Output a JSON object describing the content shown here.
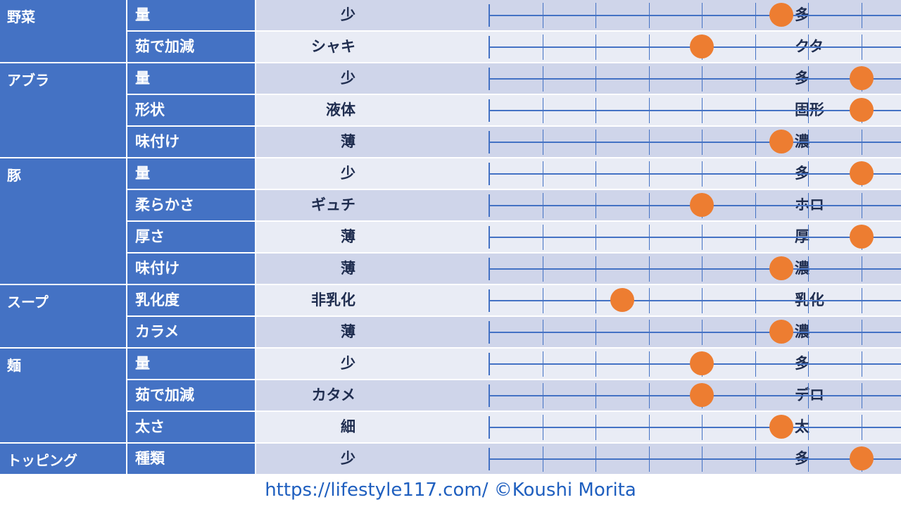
{
  "chart_data": {
    "type": "table",
    "scale_steps": 5,
    "groups": [
      {
        "name": "野菜",
        "rows": [
          {
            "item": "量",
            "left": "少",
            "right": "多",
            "value": 4
          },
          {
            "item": "茹で加減",
            "left": "シャキ",
            "right": "クタ",
            "value": 3
          }
        ]
      },
      {
        "name": "アブラ",
        "rows": [
          {
            "item": "量",
            "left": "少",
            "right": "多",
            "value": 5
          },
          {
            "item": "形状",
            "left": "液体",
            "right": "固形",
            "value": 5
          },
          {
            "item": "味付け",
            "left": "薄",
            "right": "濃",
            "value": 4
          }
        ]
      },
      {
        "name": "豚",
        "rows": [
          {
            "item": "量",
            "left": "少",
            "right": "多",
            "value": 5
          },
          {
            "item": "柔らかさ",
            "left": "ギュチ",
            "right": "ホロ",
            "value": 3
          },
          {
            "item": "厚さ",
            "left": "薄",
            "right": "厚",
            "value": 5
          },
          {
            "item": "味付け",
            "left": "薄",
            "right": "濃",
            "value": 4
          }
        ]
      },
      {
        "name": "スープ",
        "rows": [
          {
            "item": "乳化度",
            "left": "非乳化",
            "right": "乳化",
            "value": 2
          },
          {
            "item": "カラメ",
            "left": "薄",
            "right": "濃",
            "value": 4
          }
        ]
      },
      {
        "name": "麺",
        "rows": [
          {
            "item": "量",
            "left": "少",
            "right": "多",
            "value": 3
          },
          {
            "item": "茹で加減",
            "left": "カタメ",
            "right": "デロ",
            "value": 3
          },
          {
            "item": "太さ",
            "left": "細",
            "right": "太",
            "value": 4
          }
        ]
      },
      {
        "name": "トッピング",
        "rows": [
          {
            "item": "種類",
            "left": "少",
            "right": "多",
            "value": 5
          }
        ]
      }
    ]
  },
  "colors": {
    "header": "#4472c4",
    "dot": "#ed7d31",
    "band_odd": "#cfd5ea",
    "band_even": "#e9ecf5"
  },
  "footer": {
    "text": "https://lifestyle117.com/  ©Koushi Morita"
  }
}
